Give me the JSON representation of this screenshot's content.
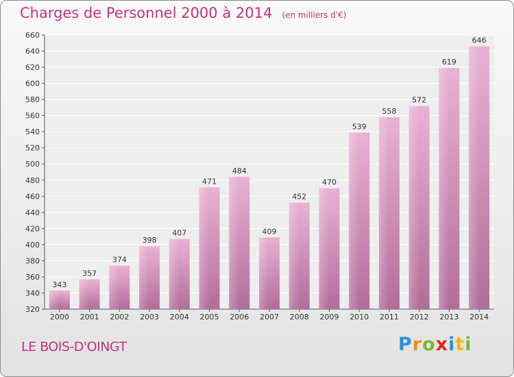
{
  "title": "Charges de Personnel 2000 à 2014",
  "unit": "(en milliers d'€)",
  "commune": "LE BOIS-D'OINGT",
  "logo": {
    "text": "Proxiti",
    "letters": [
      {
        "ch": "P",
        "color": "#2f8fd8"
      },
      {
        "ch": "r",
        "color": "#f28c1c"
      },
      {
        "ch": "o",
        "color": "#7ab92f"
      },
      {
        "ch": "x",
        "color": "#e2231a"
      },
      {
        "ch": "i",
        "color": "#2f8fd8"
      },
      {
        "ch": "t",
        "color": "#f2b51c"
      },
      {
        "ch": "i",
        "color": "#7ab92f"
      }
    ]
  },
  "colors": {
    "accent": "#c0337f",
    "bar_light": "#eab0d3",
    "bar_dark": "#b06c98"
  },
  "chart_data": {
    "type": "bar",
    "categories": [
      "2000",
      "2001",
      "2002",
      "2003",
      "2004",
      "2005",
      "2006",
      "2007",
      "2008",
      "2009",
      "2010",
      "2011",
      "2012",
      "2013",
      "2014"
    ],
    "values": [
      343,
      357,
      374,
      398,
      407,
      471,
      484,
      409,
      452,
      470,
      539,
      558,
      572,
      619,
      646
    ],
    "ylim": [
      320,
      660
    ],
    "yticks": [
      320,
      340,
      360,
      380,
      400,
      420,
      440,
      460,
      480,
      500,
      520,
      540,
      560,
      580,
      600,
      620,
      640,
      660
    ],
    "grid": true,
    "data_labels": true
  }
}
